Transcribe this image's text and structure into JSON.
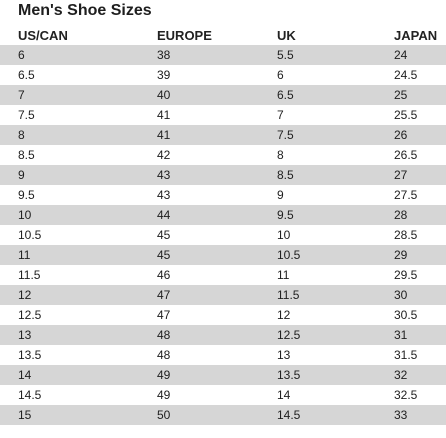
{
  "title": "Men's Shoe Sizes",
  "headers": [
    "US/CAN",
    "EUROPE",
    "UK",
    "JAPAN"
  ],
  "rows": [
    [
      "6",
      "38",
      "5.5",
      "24"
    ],
    [
      "6.5",
      "39",
      "6",
      "24.5"
    ],
    [
      "7",
      "40",
      "6.5",
      "25"
    ],
    [
      "7.5",
      "41",
      "7",
      "25.5"
    ],
    [
      "8",
      "41",
      "7.5",
      "26"
    ],
    [
      "8.5",
      "42",
      "8",
      "26.5"
    ],
    [
      "9",
      "43",
      "8.5",
      "27"
    ],
    [
      "9.5",
      "43",
      "9",
      "27.5"
    ],
    [
      "10",
      "44",
      "9.5",
      "28"
    ],
    [
      "10.5",
      "45",
      "10",
      "28.5"
    ],
    [
      "11",
      "45",
      "10.5",
      "29"
    ],
    [
      "11.5",
      "46",
      "11",
      "29.5"
    ],
    [
      "12",
      "47",
      "11.5",
      "30"
    ],
    [
      "12.5",
      "47",
      "12",
      "30.5"
    ],
    [
      "13",
      "48",
      "12.5",
      "31"
    ],
    [
      "13.5",
      "48",
      "13",
      "31.5"
    ],
    [
      "14",
      "49",
      "13.5",
      "32"
    ],
    [
      "14.5",
      "49",
      "14",
      "32.5"
    ],
    [
      "15",
      "50",
      "14.5",
      "33"
    ]
  ],
  "colors": {
    "stripe": "#d6d6d6",
    "text": "#1e1e1e"
  }
}
